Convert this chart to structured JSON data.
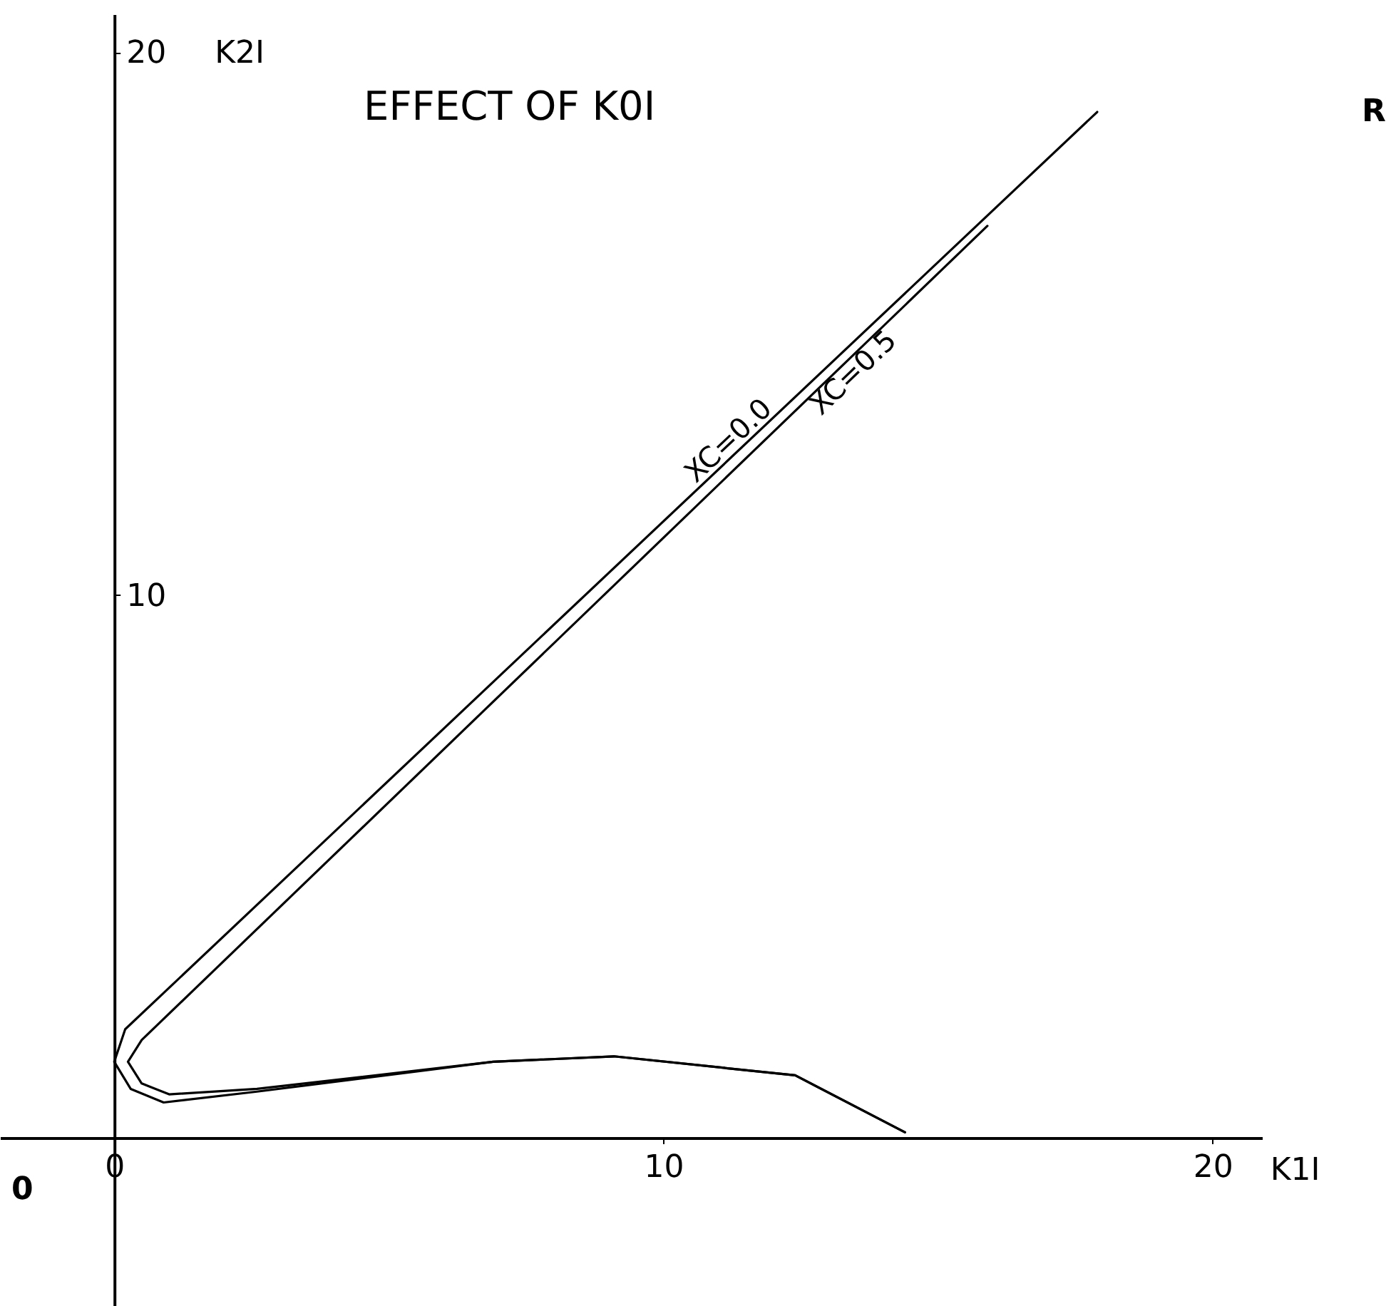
{
  "chart_data": {
    "type": "line",
    "title": "EFFECT OF K0I",
    "xlabel": "K1I",
    "ylabel": "K2I",
    "xlim": [
      -2.08,
      20.9
    ],
    "ylim": [
      -3.1,
      20.7
    ],
    "xticks": [
      0,
      10,
      20
    ],
    "yticks": [
      10,
      20
    ],
    "grid": false,
    "legend": false,
    "marker": "none",
    "line_style": "solid",
    "annotations": [
      "R",
      "0"
    ],
    "series": [
      {
        "name": "XC=0.0",
        "color": "#000000",
        "x": [
          17.9,
          0.2,
          0.0,
          0.3,
          0.9,
          2.6,
          6.9,
          9.1,
          12.4,
          14.4
        ],
        "values": [
          18.9,
          2.0,
          1.4,
          0.9,
          0.65,
          0.85,
          1.4,
          1.5,
          1.15,
          0.1
        ]
      },
      {
        "name": "XC=0.5",
        "color": "#000000",
        "x": [
          15.9,
          0.5,
          0.25,
          0.5,
          1.0,
          2.6,
          6.9,
          9.1,
          12.4,
          14.4
        ],
        "values": [
          16.8,
          1.8,
          1.4,
          1.0,
          0.8,
          0.9,
          1.4,
          1.5,
          1.15,
          0.1
        ]
      }
    ]
  }
}
